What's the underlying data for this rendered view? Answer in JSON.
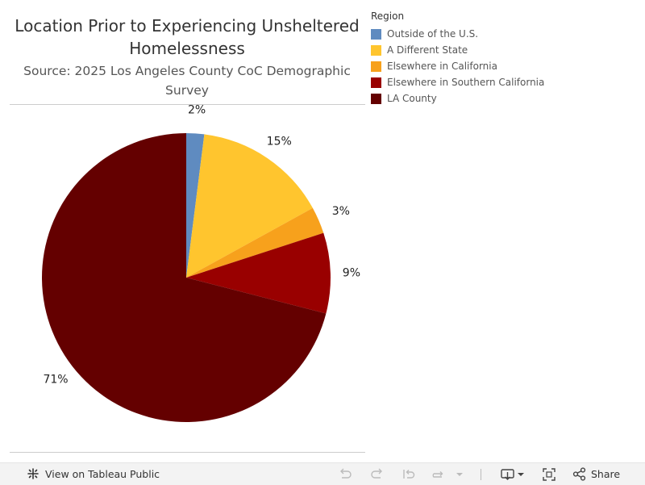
{
  "colors": {
    "outside_us": "#5f8bc0",
    "different_state": "#ffc52e",
    "elsewhere_ca": "#f7a11c",
    "elsewhere_socal": "#990000",
    "la_county": "#640000"
  },
  "chart_data": {
    "type": "pie",
    "title": "Location Prior to Experiencing Unsheltered Homelessness",
    "subtitle": "Source: 2025 Los Angeles County CoC Demographic Survey",
    "legend_title": "Region",
    "legend_position": "right",
    "slices": [
      {
        "name": "Outside of the U.S.",
        "value": 2,
        "label": "2%",
        "color": "#5f8bc0"
      },
      {
        "name": "A Different State",
        "value": 15,
        "label": "15%",
        "color": "#ffc52e"
      },
      {
        "name": "Elsewhere in California",
        "value": 3,
        "label": "3%",
        "color": "#f7a11c"
      },
      {
        "name": "Elsewhere in Southern California",
        "value": 9,
        "label": "9%",
        "color": "#990000"
      },
      {
        "name": "LA County",
        "value": 71,
        "label": "71%",
        "color": "#640000"
      }
    ]
  },
  "toolbar": {
    "view_label": "View on Tableau Public",
    "share_label": "Share",
    "icons": [
      "tableau-logo-icon",
      "undo-icon",
      "redo-icon",
      "revert-icon",
      "refresh-icon",
      "download-icon",
      "fullscreen-icon",
      "share-icon"
    ]
  }
}
